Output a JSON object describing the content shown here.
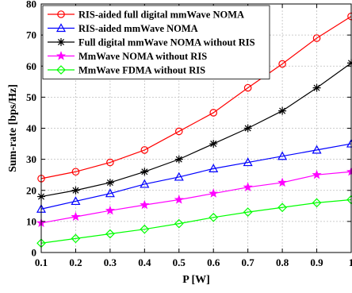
{
  "chart_data": {
    "type": "line",
    "xlabel": "P [W]",
    "ylabel": "Sum-rate [bps/Hz]",
    "x": [
      0.1,
      0.2,
      0.3,
      0.4,
      0.5,
      0.6,
      0.7,
      0.8,
      0.9,
      1
    ],
    "x_tick_labels": [
      "0.1",
      "0.2",
      "0.3",
      "0.4",
      "0.5",
      "0.6",
      "0.7",
      "0.8",
      "0.9",
      "1"
    ],
    "xlim": [
      0.1,
      1
    ],
    "ylim": [
      0,
      80
    ],
    "y_ticks": [
      0,
      10,
      20,
      30,
      40,
      50,
      60,
      70,
      80
    ],
    "y_tick_labels": [
      "0",
      "10",
      "20",
      "30",
      "40",
      "50",
      "60",
      "70",
      "80"
    ],
    "grid": true,
    "legend_position": "top-left",
    "series": [
      {
        "name": "RIS-aided full digital mmWave NOMA",
        "color": "#ff0000",
        "marker": "circle",
        "values": [
          23.8,
          26,
          29,
          33,
          39,
          45,
          53,
          60.7,
          69,
          76
        ]
      },
      {
        "name": "RIS-aided mmWave NOMA",
        "color": "#0000ff",
        "marker": "triangle",
        "values": [
          14,
          16.5,
          19,
          22,
          24.3,
          27,
          29,
          31,
          33,
          35
        ]
      },
      {
        "name": "Full digital mmWave NOMA without RIS",
        "color": "#000000",
        "marker": "asterisk",
        "values": [
          18,
          20,
          22.5,
          26,
          30,
          35,
          40,
          45.6,
          53,
          61
        ]
      },
      {
        "name": "MmWave NOMA without RIS",
        "color": "#ff00ff",
        "marker": "star",
        "values": [
          9.5,
          11.5,
          13.5,
          15.3,
          17,
          19,
          21,
          22.5,
          25,
          26
        ]
      },
      {
        "name": "MmWave FDMA without RIS",
        "color": "#00ff00",
        "marker": "diamond",
        "values": [
          3,
          4.5,
          6,
          7.5,
          9.3,
          11.3,
          13,
          14.5,
          16,
          17
        ]
      }
    ]
  }
}
